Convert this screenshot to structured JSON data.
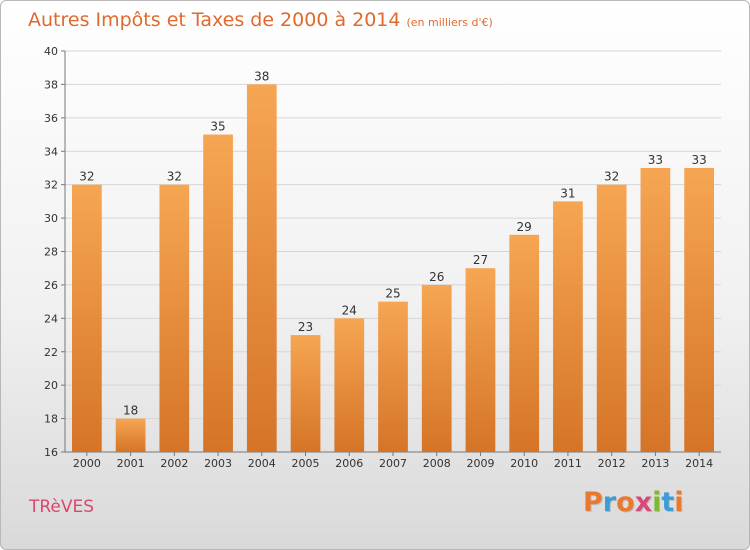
{
  "page": {
    "title": "Autres Impôts et Taxes de 2000 à 2014",
    "unit_note": "(en milliers d'€)",
    "commune": "TRèVES",
    "logo_text": "Proxiti"
  },
  "colors": {
    "title": "#e06a2c",
    "bar_light": "#f6a653",
    "bar_dark": "#d57427",
    "commune": "#d9486a",
    "logo": [
      "#e8792e",
      "#3c9dd6",
      "#e8792e",
      "#d94a7a",
      "#7fb834",
      "#3c9dd6",
      "#e8792e"
    ]
  },
  "chart_data": {
    "type": "bar",
    "categories": [
      "2000",
      "2001",
      "2002",
      "2003",
      "2004",
      "2005",
      "2006",
      "2007",
      "2008",
      "2009",
      "2010",
      "2011",
      "2012",
      "2013",
      "2014"
    ],
    "values": [
      32,
      18,
      32,
      35,
      38,
      23,
      24,
      25,
      26,
      27,
      29,
      31,
      32,
      33,
      33
    ],
    "title": "Autres Impôts et Taxes de 2000 à 2014",
    "xlabel": "",
    "ylabel": "",
    "ylim": [
      16,
      40
    ],
    "yticks": [
      16,
      18,
      20,
      22,
      24,
      26,
      28,
      30,
      32,
      34,
      36,
      38,
      40
    ],
    "grid": "horizontal",
    "data_labels": true
  }
}
